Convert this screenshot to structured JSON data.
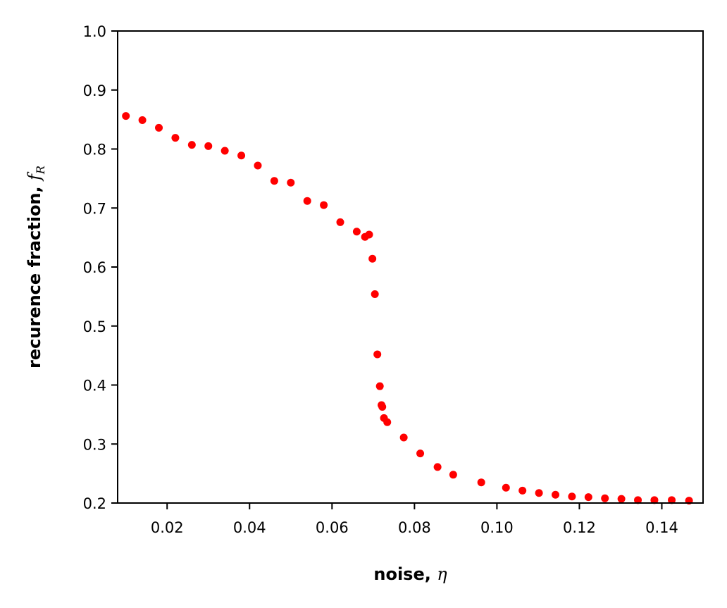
{
  "chart_data": {
    "type": "scatter",
    "xlabel": {
      "text": "noise, ",
      "symbol": "η"
    },
    "ylabel": {
      "text": "recurence fraction, ",
      "symbol": "f",
      "subscript": "R"
    },
    "xlim": [
      0.008,
      0.15
    ],
    "ylim": [
      0.2,
      1.0
    ],
    "xticks": [
      0.02,
      0.04,
      0.06,
      0.08,
      0.1,
      0.12,
      0.14
    ],
    "xtick_labels": [
      "0.02",
      "0.04",
      "0.06",
      "0.08",
      "0.10",
      "0.12",
      "0.14"
    ],
    "yticks": [
      0.2,
      0.3,
      0.4,
      0.5,
      0.6,
      0.7,
      0.8,
      0.9,
      1.0
    ],
    "ytick_labels": [
      "0.2",
      "0.3",
      "0.4",
      "0.5",
      "0.6",
      "0.7",
      "0.8",
      "0.9",
      "1.0"
    ],
    "grid": false,
    "marker_color": "#ff0000",
    "points": [
      [
        0.01,
        0.856
      ],
      [
        0.014,
        0.849
      ],
      [
        0.018,
        0.836
      ],
      [
        0.022,
        0.819
      ],
      [
        0.026,
        0.807
      ],
      [
        0.03,
        0.805
      ],
      [
        0.034,
        0.797
      ],
      [
        0.038,
        0.789
      ],
      [
        0.042,
        0.772
      ],
      [
        0.046,
        0.746
      ],
      [
        0.05,
        0.743
      ],
      [
        0.054,
        0.712
      ],
      [
        0.058,
        0.705
      ],
      [
        0.062,
        0.676
      ],
      [
        0.066,
        0.66
      ],
      [
        0.068,
        0.651
      ],
      [
        0.069,
        0.655
      ],
      [
        0.0698,
        0.614
      ],
      [
        0.0704,
        0.554
      ],
      [
        0.071,
        0.452
      ],
      [
        0.0716,
        0.398
      ],
      [
        0.072,
        0.366
      ],
      [
        0.0722,
        0.363
      ],
      [
        0.0726,
        0.344
      ],
      [
        0.0734,
        0.337
      ],
      [
        0.0774,
        0.311
      ],
      [
        0.0814,
        0.284
      ],
      [
        0.0856,
        0.261
      ],
      [
        0.0894,
        0.248
      ],
      [
        0.0962,
        0.235
      ],
      [
        0.1022,
        0.226
      ],
      [
        0.1062,
        0.221
      ],
      [
        0.1102,
        0.217
      ],
      [
        0.1142,
        0.214
      ],
      [
        0.1182,
        0.211
      ],
      [
        0.1222,
        0.21
      ],
      [
        0.1262,
        0.208
      ],
      [
        0.1302,
        0.207
      ],
      [
        0.1342,
        0.205
      ],
      [
        0.1382,
        0.205
      ],
      [
        0.1424,
        0.205
      ],
      [
        0.1466,
        0.204
      ]
    ]
  }
}
